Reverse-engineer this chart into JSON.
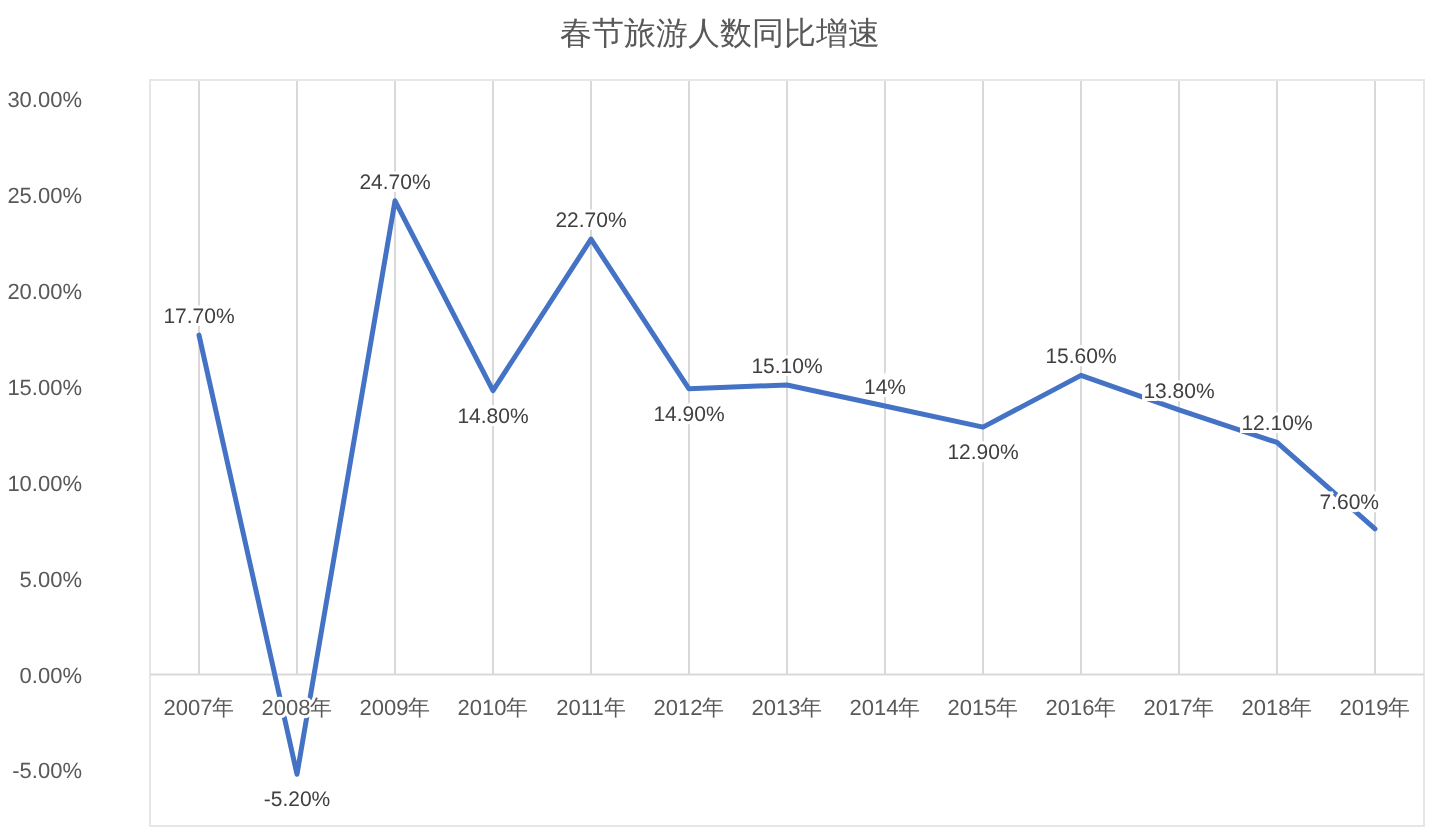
{
  "chart_data": {
    "type": "line",
    "title": "春节旅游人数同比增速",
    "categories": [
      "2007年",
      "2008年",
      "2009年",
      "2010年",
      "2011年",
      "2012年",
      "2013年",
      "2014年",
      "2015年",
      "2016年",
      "2017年",
      "2018年",
      "2019年"
    ],
    "values": [
      17.7,
      -5.2,
      24.7,
      14.8,
      22.7,
      14.9,
      15.1,
      14,
      12.9,
      15.6,
      13.8,
      12.1,
      7.6
    ],
    "value_labels": [
      "17.70%",
      "-5.20%",
      "24.70%",
      "14.80%",
      "22.70%",
      "14.90%",
      "15.10%",
      "14%",
      "12.90%",
      "15.60%",
      "13.80%",
      "12.10%",
      "7.60%"
    ],
    "color": "#4472c4",
    "ylim": [
      -8,
      31
    ],
    "yticks": [
      {
        "value": -5,
        "label": "-5.00%"
      },
      {
        "value": 0,
        "label": "0.00%"
      },
      {
        "value": 5,
        "label": "5.00%"
      },
      {
        "value": 10,
        "label": "10.00%"
      },
      {
        "value": 15,
        "label": "15.00%"
      },
      {
        "value": 20,
        "label": "20.00%"
      },
      {
        "value": 25,
        "label": "25.00%"
      },
      {
        "value": 30,
        "label": "30.00%"
      }
    ],
    "grid": "x",
    "marker": "none",
    "line_style": "solid"
  }
}
